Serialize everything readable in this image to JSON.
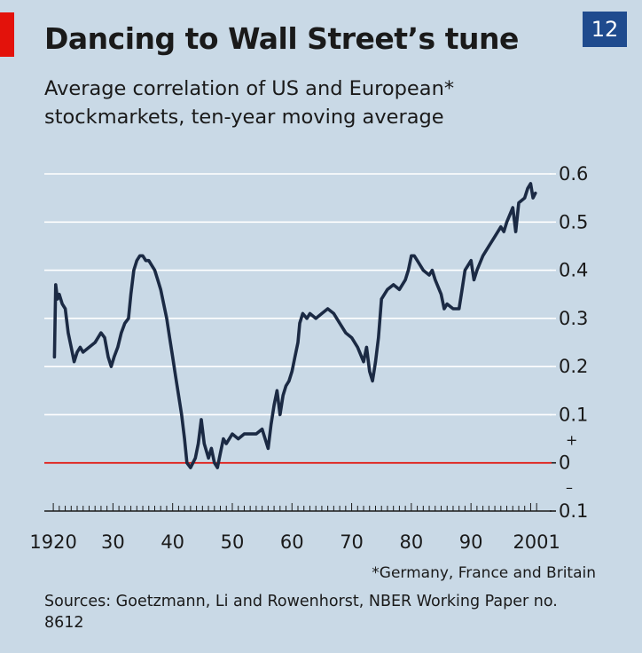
{
  "badge": "12",
  "chart_data": {
    "type": "line",
    "title": "Dancing to Wall Street’s tune",
    "subtitle": "Average correlation of US and European* stockmarkets, ten-year moving average",
    "xlabel": "",
    "ylabel": "",
    "xlim": [
      1920,
      2001
    ],
    "ylim": [
      -0.1,
      0.6
    ],
    "grid": true,
    "y_ticks": [
      {
        "value": 0.6,
        "label": "0.6"
      },
      {
        "value": 0.5,
        "label": "0.5"
      },
      {
        "value": 0.4,
        "label": "0.4"
      },
      {
        "value": 0.3,
        "label": "0.3"
      },
      {
        "value": 0.2,
        "label": "0.2"
      },
      {
        "value": 0.1,
        "label": "0.1"
      },
      {
        "value": 0,
        "label": "0"
      },
      {
        "value": -0.1,
        "label": "0.1"
      }
    ],
    "sign_markers": {
      "plus": "+",
      "minus": "–"
    },
    "x_ticks": [
      {
        "value": 1920,
        "label": "1920"
      },
      {
        "value": 1930,
        "label": "30"
      },
      {
        "value": 1940,
        "label": "40"
      },
      {
        "value": 1950,
        "label": "50"
      },
      {
        "value": 1960,
        "label": "60"
      },
      {
        "value": 1970,
        "label": "70"
      },
      {
        "value": 1980,
        "label": "80"
      },
      {
        "value": 1990,
        "label": "90"
      },
      {
        "value": 2001,
        "label": "2001"
      }
    ],
    "series": [
      {
        "color": "#1b2a44",
        "points": [
          [
            1920.2,
            0.22
          ],
          [
            1920.4,
            0.37
          ],
          [
            1920.7,
            0.34
          ],
          [
            1921.0,
            0.35
          ],
          [
            1921.5,
            0.33
          ],
          [
            1922.0,
            0.32
          ],
          [
            1922.5,
            0.27
          ],
          [
            1923.0,
            0.24
          ],
          [
            1923.5,
            0.21
          ],
          [
            1924.0,
            0.23
          ],
          [
            1924.5,
            0.24
          ],
          [
            1925.0,
            0.23
          ],
          [
            1926.0,
            0.24
          ],
          [
            1927.0,
            0.25
          ],
          [
            1928.0,
            0.27
          ],
          [
            1928.6,
            0.26
          ],
          [
            1929.2,
            0.22
          ],
          [
            1929.7,
            0.2
          ],
          [
            1930.2,
            0.22
          ],
          [
            1930.8,
            0.24
          ],
          [
            1931.4,
            0.27
          ],
          [
            1932.0,
            0.29
          ],
          [
            1932.6,
            0.3
          ],
          [
            1933.0,
            0.35
          ],
          [
            1933.5,
            0.4
          ],
          [
            1934.0,
            0.42
          ],
          [
            1934.5,
            0.43
          ],
          [
            1935.0,
            0.43
          ],
          [
            1935.5,
            0.42
          ],
          [
            1936.0,
            0.42
          ],
          [
            1936.5,
            0.41
          ],
          [
            1937.0,
            0.4
          ],
          [
            1937.5,
            0.38
          ],
          [
            1938.0,
            0.36
          ],
          [
            1938.5,
            0.33
          ],
          [
            1939.0,
            0.3
          ],
          [
            1939.5,
            0.26
          ],
          [
            1940.0,
            0.22
          ],
          [
            1940.5,
            0.18
          ],
          [
            1941.0,
            0.14
          ],
          [
            1941.5,
            0.1
          ],
          [
            1942.0,
            0.05
          ],
          [
            1942.4,
            0.0
          ],
          [
            1943.0,
            -0.01
          ],
          [
            1943.8,
            0.01
          ],
          [
            1944.3,
            0.04
          ],
          [
            1944.8,
            0.09
          ],
          [
            1945.3,
            0.04
          ],
          [
            1946.0,
            0.01
          ],
          [
            1946.5,
            0.03
          ],
          [
            1947.0,
            0.0
          ],
          [
            1947.5,
            -0.01
          ],
          [
            1948.0,
            0.02
          ],
          [
            1948.5,
            0.05
          ],
          [
            1949.0,
            0.04
          ],
          [
            1949.5,
            0.05
          ],
          [
            1950.0,
            0.06
          ],
          [
            1951.0,
            0.05
          ],
          [
            1952.0,
            0.06
          ],
          [
            1953.0,
            0.06
          ],
          [
            1954.0,
            0.06
          ],
          [
            1955.0,
            0.07
          ],
          [
            1955.5,
            0.05
          ],
          [
            1956.0,
            0.03
          ],
          [
            1956.5,
            0.08
          ],
          [
            1957.0,
            0.12
          ],
          [
            1957.5,
            0.15
          ],
          [
            1958.0,
            0.1
          ],
          [
            1958.5,
            0.14
          ],
          [
            1959.0,
            0.16
          ],
          [
            1959.5,
            0.17
          ],
          [
            1960.0,
            0.19
          ],
          [
            1960.5,
            0.22
          ],
          [
            1961.0,
            0.25
          ],
          [
            1961.3,
            0.29
          ],
          [
            1961.8,
            0.31
          ],
          [
            1962.5,
            0.3
          ],
          [
            1963.0,
            0.31
          ],
          [
            1964.0,
            0.3
          ],
          [
            1965.0,
            0.31
          ],
          [
            1966.0,
            0.32
          ],
          [
            1967.0,
            0.31
          ],
          [
            1968.0,
            0.29
          ],
          [
            1969.0,
            0.27
          ],
          [
            1970.0,
            0.26
          ],
          [
            1971.0,
            0.24
          ],
          [
            1972.0,
            0.21
          ],
          [
            1972.5,
            0.24
          ],
          [
            1973.0,
            0.19
          ],
          [
            1973.5,
            0.17
          ],
          [
            1974.0,
            0.21
          ],
          [
            1974.5,
            0.26
          ],
          [
            1975.0,
            0.34
          ],
          [
            1976.0,
            0.36
          ],
          [
            1977.0,
            0.37
          ],
          [
            1978.0,
            0.36
          ],
          [
            1979.0,
            0.38
          ],
          [
            1979.5,
            0.4
          ],
          [
            1980.0,
            0.43
          ],
          [
            1980.5,
            0.43
          ],
          [
            1981.0,
            0.42
          ],
          [
            1982.0,
            0.4
          ],
          [
            1983.0,
            0.39
          ],
          [
            1983.5,
            0.4
          ],
          [
            1984.0,
            0.38
          ],
          [
            1985.0,
            0.35
          ],
          [
            1985.5,
            0.32
          ],
          [
            1986.0,
            0.33
          ],
          [
            1987.0,
            0.32
          ],
          [
            1988.0,
            0.32
          ],
          [
            1988.5,
            0.36
          ],
          [
            1989.0,
            0.4
          ],
          [
            1990.0,
            0.42
          ],
          [
            1990.5,
            0.38
          ],
          [
            1991.0,
            0.4
          ],
          [
            1992.0,
            0.43
          ],
          [
            1993.0,
            0.45
          ],
          [
            1994.0,
            0.47
          ],
          [
            1995.0,
            0.49
          ],
          [
            1995.5,
            0.48
          ],
          [
            1996.0,
            0.5
          ],
          [
            1997.0,
            0.53
          ],
          [
            1997.5,
            0.48
          ],
          [
            1998.0,
            0.54
          ],
          [
            1999.0,
            0.55
          ],
          [
            1999.5,
            0.57
          ],
          [
            2000.0,
            0.58
          ],
          [
            2000.4,
            0.55
          ],
          [
            2000.8,
            0.56
          ]
        ]
      }
    ],
    "reference_lines": [
      {
        "y": 0,
        "color": "#e3120b"
      }
    ]
  },
  "footnote": "*Germany, France and Britain",
  "sources": "Sources: Goetzmann, Li and Rowenhorst, NBER Working Paper no. 8612",
  "colors": {
    "background": "#c9d9e6",
    "grid": "#ffffff",
    "zero_line": "#e3120b",
    "series_line": "#1b2a44",
    "badge": "#1f4b8e",
    "accent": "#e3120b"
  }
}
